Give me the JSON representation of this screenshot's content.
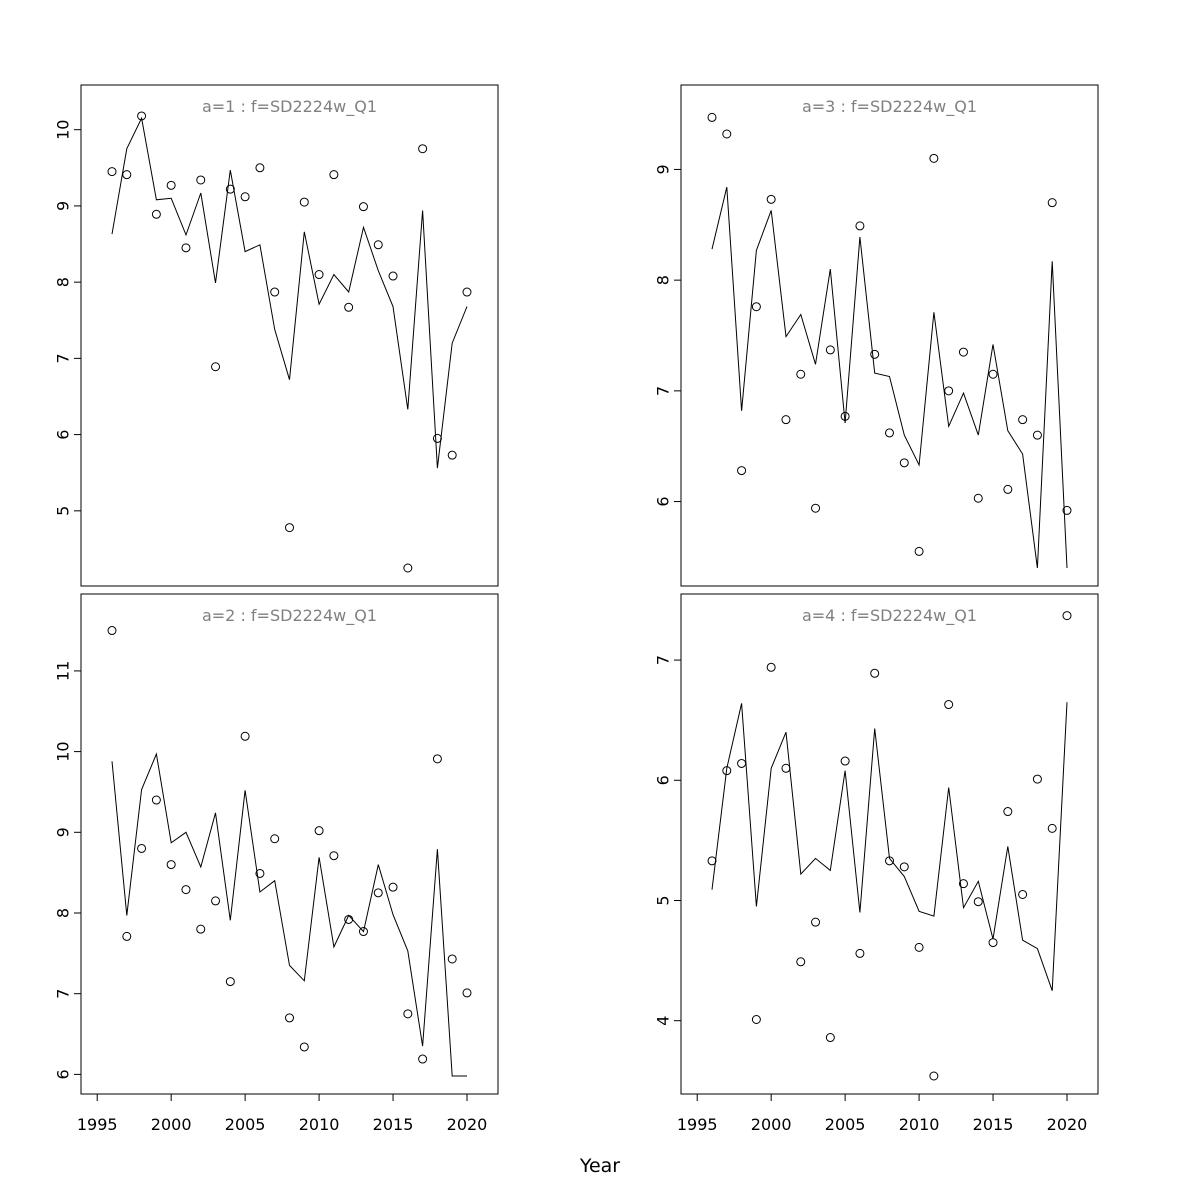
{
  "xlabel": "Year",
  "chart_data": [
    {
      "type": "scatter",
      "panel_title": "a=1  :  f=SD2224w_Q1",
      "xlim": [
        1996,
        2020
      ],
      "ylim": [
        4.25,
        10.35
      ],
      "x_ticks": [
        1995,
        2000,
        2005,
        2010,
        2015,
        2020
      ],
      "y_ticks": [
        5,
        6,
        7,
        8,
        9,
        10
      ],
      "show_x_axis": false,
      "series": [
        {
          "kind": "points",
          "x": [
            1996,
            1997,
            1998,
            1999,
            2000,
            2001,
            2002,
            2003,
            2004,
            2005,
            2006,
            2007,
            2008,
            2009,
            2010,
            2011,
            2012,
            2013,
            2014,
            2015,
            2016,
            2017,
            2018,
            2019,
            2020
          ],
          "y": [
            9.45,
            9.41,
            10.18,
            8.89,
            9.27,
            8.45,
            9.34,
            6.89,
            9.22,
            9.12,
            9.5,
            7.87,
            4.78,
            9.05,
            8.1,
            9.41,
            7.67,
            8.99,
            8.49,
            8.08,
            4.25,
            9.75,
            5.95,
            5.73,
            7.87
          ]
        },
        {
          "kind": "line",
          "x": [
            1996,
            1997,
            1998,
            1999,
            2000,
            2001,
            2002,
            2003,
            2004,
            2005,
            2006,
            2007,
            2008,
            2009,
            2010,
            2011,
            2012,
            2013,
            2014,
            2015,
            2016,
            2017,
            2018,
            2019,
            2020
          ],
          "y": [
            8.63,
            9.75,
            10.15,
            9.08,
            9.1,
            8.62,
            9.17,
            7.99,
            9.47,
            8.4,
            8.49,
            7.38,
            6.72,
            8.66,
            7.71,
            8.1,
            7.87,
            8.72,
            8.15,
            7.68,
            6.33,
            8.94,
            5.56,
            7.2,
            7.68
          ]
        }
      ]
    },
    {
      "type": "scatter",
      "panel_title": "a=3  :  f=SD2224w_Q1",
      "xlim": [
        1996,
        2020
      ],
      "ylim": [
        5.4,
        9.6
      ],
      "x_ticks": [
        1995,
        2000,
        2005,
        2010,
        2015,
        2020
      ],
      "y_ticks": [
        6,
        7,
        8,
        9
      ],
      "show_x_axis": false,
      "series": [
        {
          "kind": "points",
          "x": [
            1996,
            1997,
            1998,
            1999,
            2000,
            2001,
            2002,
            2003,
            2004,
            2005,
            2006,
            2007,
            2008,
            2009,
            2010,
            2011,
            2012,
            2013,
            2014,
            2015,
            2016,
            2017,
            2018,
            2019,
            2020
          ],
          "y": [
            9.47,
            9.32,
            6.28,
            7.76,
            8.73,
            6.74,
            7.15,
            5.94,
            7.37,
            6.77,
            8.49,
            7.33,
            6.62,
            6.35,
            5.55,
            9.1,
            7.0,
            7.35,
            6.03,
            7.15,
            6.11,
            6.74,
            6.6,
            8.7,
            5.92
          ]
        },
        {
          "kind": "line",
          "x": [
            1996,
            1997,
            1998,
            1999,
            2000,
            2001,
            2002,
            2003,
            2004,
            2005,
            2006,
            2007,
            2008,
            2009,
            2010,
            2011,
            2012,
            2013,
            2014,
            2015,
            2016,
            2017,
            2018,
            2019,
            2020
          ],
          "y": [
            8.28,
            8.84,
            6.82,
            8.27,
            8.63,
            7.49,
            7.69,
            7.24,
            8.1,
            6.71,
            8.39,
            7.16,
            7.13,
            6.6,
            6.33,
            7.71,
            6.68,
            6.98,
            6.6,
            7.42,
            6.64,
            6.43,
            5.4,
            8.17,
            5.4
          ]
        }
      ]
    },
    {
      "type": "scatter",
      "panel_title": "a=2  :  f=SD2224w_Q1",
      "xlim": [
        1996,
        2020
      ],
      "ylim": [
        5.98,
        11.73
      ],
      "x_ticks": [
        1995,
        2000,
        2005,
        2010,
        2015,
        2020
      ],
      "y_ticks": [
        6,
        7,
        8,
        9,
        10,
        11
      ],
      "show_x_axis": true,
      "series": [
        {
          "kind": "points",
          "x": [
            1996,
            1997,
            1998,
            1999,
            2000,
            2001,
            2002,
            2003,
            2004,
            2005,
            2006,
            2007,
            2008,
            2009,
            2010,
            2011,
            2012,
            2013,
            2014,
            2015,
            2016,
            2017,
            2018,
            2019,
            2020
          ],
          "y": [
            11.5,
            7.71,
            8.8,
            9.4,
            8.6,
            8.29,
            7.8,
            8.15,
            7.15,
            10.19,
            8.49,
            8.92,
            6.7,
            6.34,
            9.02,
            8.71,
            7.92,
            7.77,
            8.25,
            8.32,
            6.75,
            6.19,
            9.91,
            7.43,
            7.01
          ]
        },
        {
          "kind": "line",
          "x": [
            1996,
            1997,
            1998,
            1999,
            2000,
            2001,
            2002,
            2003,
            2004,
            2005,
            2006,
            2007,
            2008,
            2009,
            2010,
            2011,
            2012,
            2013,
            2014,
            2015,
            2016,
            2017,
            2018,
            2019,
            2020
          ],
          "y": [
            9.88,
            7.97,
            9.53,
            9.97,
            8.87,
            9.0,
            8.57,
            9.24,
            7.91,
            9.52,
            8.26,
            8.4,
            7.35,
            7.16,
            8.69,
            7.58,
            7.97,
            7.77,
            8.6,
            7.98,
            7.53,
            6.35,
            8.79,
            5.98,
            5.98
          ]
        }
      ]
    },
    {
      "type": "scatter",
      "panel_title": "a=4  :  f=SD2224w_Q1",
      "xlim": [
        1996,
        2020
      ],
      "ylim": [
        3.54,
        7.4
      ],
      "x_ticks": [
        1995,
        2000,
        2005,
        2010,
        2015,
        2020
      ],
      "y_ticks": [
        4,
        5,
        6,
        7
      ],
      "show_x_axis": true,
      "series": [
        {
          "kind": "points",
          "x": [
            1996,
            1997,
            1998,
            1999,
            2000,
            2001,
            2002,
            2003,
            2004,
            2005,
            2006,
            2007,
            2008,
            2009,
            2010,
            2011,
            2012,
            2013,
            2014,
            2015,
            2016,
            2017,
            2018,
            2019,
            2020
          ],
          "y": [
            5.33,
            6.08,
            6.14,
            4.01,
            6.94,
            6.1,
            4.49,
            4.82,
            3.86,
            6.16,
            4.56,
            6.89,
            5.33,
            5.28,
            4.61,
            3.54,
            6.63,
            5.14,
            4.99,
            4.65,
            5.74,
            5.05,
            6.01,
            5.6,
            7.37
          ]
        },
        {
          "kind": "line",
          "x": [
            1996,
            1997,
            1998,
            1999,
            2000,
            2001,
            2002,
            2003,
            2004,
            2005,
            2006,
            2007,
            2008,
            2009,
            2010,
            2011,
            2012,
            2013,
            2014,
            2015,
            2016,
            2017,
            2018,
            2019,
            2020
          ],
          "y": [
            5.09,
            6.1,
            6.64,
            4.95,
            6.1,
            6.4,
            5.22,
            5.35,
            5.25,
            6.08,
            4.9,
            6.43,
            5.35,
            5.2,
            4.91,
            4.87,
            5.94,
            4.94,
            5.16,
            4.68,
            5.45,
            4.67,
            4.6,
            4.25,
            6.65
          ]
        }
      ]
    }
  ]
}
